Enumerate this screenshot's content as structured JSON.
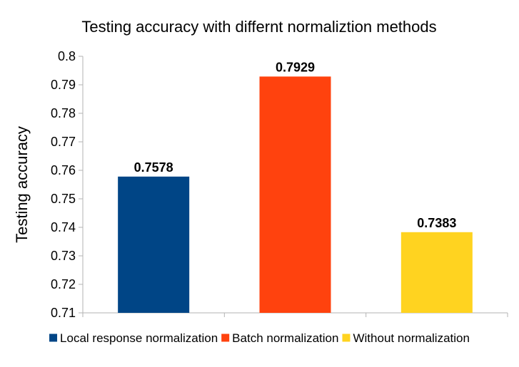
{
  "chart_data": {
    "type": "bar",
    "title": "Testing accuracy with differnt normaliztion methods",
    "xlabel": "",
    "ylabel": "Testing accuracy",
    "categories": [
      "Local response normalization",
      "Batch normalization",
      "Without normalization"
    ],
    "values": [
      0.7578,
      0.7929,
      0.7383
    ],
    "data_labels": [
      "0.7578",
      "0.7929",
      "0.7383"
    ],
    "colors": [
      "#004586",
      "#ff420e",
      "#ffd320"
    ],
    "ylim": [
      0.71,
      0.8
    ],
    "yticks": [
      0.71,
      0.72,
      0.73,
      0.74,
      0.75,
      0.76,
      0.77,
      0.78,
      0.79,
      0.8
    ],
    "ytick_labels": [
      "0.71",
      "0.72",
      "0.73",
      "0.74",
      "0.75",
      "0.76",
      "0.77",
      "0.78",
      "0.79",
      "0.8"
    ],
    "grid": false,
    "legend_position": "bottom"
  }
}
